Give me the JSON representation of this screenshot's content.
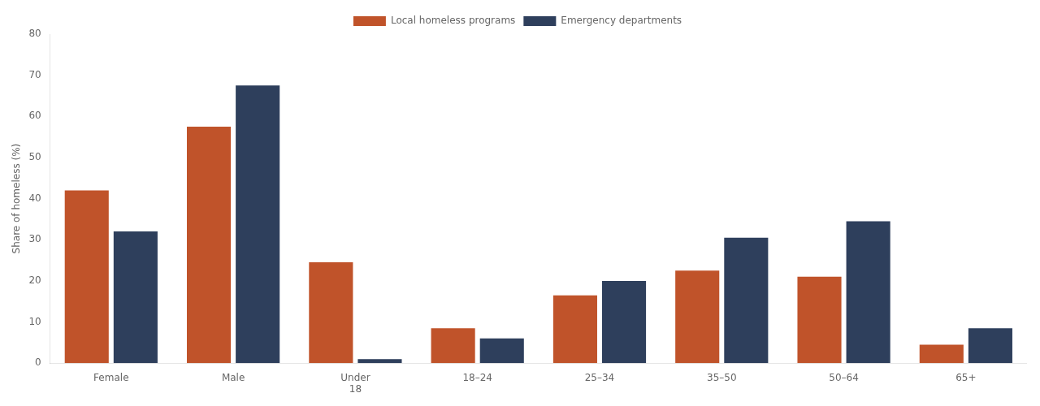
{
  "chart_data": {
    "type": "bar",
    "categories": [
      "Female",
      "Male",
      "Under\n18",
      "18–24",
      "25–34",
      "35–50",
      "50–64",
      "65+"
    ],
    "series": [
      {
        "name": "Local homeless programs",
        "color": "#C0532A",
        "values": [
          42,
          57.5,
          24.5,
          8.5,
          16.5,
          22.5,
          21,
          4.5
        ]
      },
      {
        "name": "Emergency departments",
        "color": "#2E3F5C",
        "values": [
          32,
          67.5,
          1,
          6,
          20,
          30.5,
          34.5,
          8.5
        ]
      }
    ],
    "ylabel": "Share of homeless (%)",
    "ylim": [
      0,
      80
    ],
    "yticks": [
      0,
      10,
      20,
      30,
      40,
      50,
      60,
      70,
      80
    ],
    "grid": false,
    "legend": "top"
  }
}
